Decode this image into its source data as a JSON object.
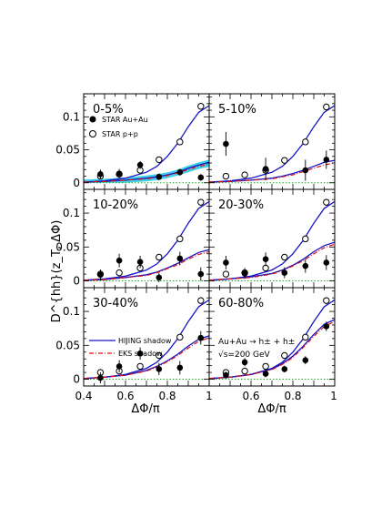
{
  "figure": {
    "ylabel": "D^{hh}(z_T, ΔΦ)",
    "xlabel": "ΔΦ/π",
    "x_ticks": [
      "0.4",
      "0.6",
      "0.8",
      "1"
    ],
    "y_ticks": [
      "0",
      "0.05",
      "0.1"
    ],
    "legend_data": [
      "STAR Au+Au",
      "STAR p+p"
    ],
    "legend_theory": [
      "HIJING shadow",
      "EKS shadow"
    ],
    "reaction": "Au+Au → h± + h±",
    "energy": "√s=200 GeV",
    "colors": {
      "hijing": "#1414c8",
      "eks": "#dd1111",
      "band": "#22c8e6",
      "baseline": "#22aa22"
    }
  },
  "chart_data": [
    {
      "type": "scatter",
      "title": "0-5%",
      "xlim": [
        0.4,
        1.0
      ],
      "ylim": [
        -0.01,
        0.135
      ],
      "series": [
        {
          "name": "STAR Au+Au",
          "x": [
            0.48,
            0.57,
            0.67,
            0.76,
            0.86,
            0.96
          ],
          "y": [
            0.013,
            0.014,
            0.027,
            0.009,
            0.016,
            0.008
          ],
          "err": [
            0.007,
            0.007,
            0.006,
            0.005,
            0.005,
            0.005
          ]
        },
        {
          "name": "STAR p+p",
          "x": [
            0.48,
            0.57,
            0.67,
            0.76,
            0.86,
            0.96
          ],
          "y": [
            0.01,
            0.013,
            0.019,
            0.035,
            0.062,
            0.116
          ],
          "err": [
            0.002,
            0.002,
            0.002,
            0.003,
            0.004,
            0.005
          ]
        },
        {
          "name": "HIJING shadow",
          "x": [
            0.4,
            0.5,
            0.6,
            0.7,
            0.75,
            0.8,
            0.85,
            0.9,
            0.95,
            1.0
          ],
          "y": [
            0.001,
            0.002,
            0.004,
            0.007,
            0.009,
            0.012,
            0.016,
            0.022,
            0.027,
            0.031
          ]
        },
        {
          "name": "EKS shadow",
          "x": [
            0.4,
            0.5,
            0.6,
            0.7,
            0.75,
            0.8,
            0.85,
            0.9,
            0.95,
            1.0
          ],
          "y": [
            0.001,
            0.002,
            0.004,
            0.006,
            0.008,
            0.011,
            0.015,
            0.02,
            0.025,
            0.028
          ]
        },
        {
          "name": "p+p curve",
          "x": [
            0.4,
            0.5,
            0.6,
            0.7,
            0.75,
            0.8,
            0.85,
            0.9,
            0.95,
            1.0
          ],
          "y": [
            0.001,
            0.003,
            0.007,
            0.016,
            0.025,
            0.04,
            0.06,
            0.085,
            0.107,
            0.117
          ]
        }
      ]
    },
    {
      "type": "scatter",
      "title": "5-10%",
      "xlim": [
        0.4,
        1.0
      ],
      "ylim": [
        -0.01,
        0.135
      ],
      "series": [
        {
          "name": "STAR Au+Au",
          "x": [
            0.48,
            0.67,
            0.86,
            0.96
          ],
          "y": [
            0.059,
            0.021,
            0.019,
            0.035
          ],
          "err": [
            0.018,
            0.017,
            0.016,
            0.014
          ]
        },
        {
          "name": "STAR p+p",
          "x": [
            0.48,
            0.57,
            0.67,
            0.76,
            0.86,
            0.96
          ],
          "y": [
            0.01,
            0.012,
            0.019,
            0.034,
            0.062,
            0.115
          ],
          "err": [
            0.002,
            0.002,
            0.002,
            0.003,
            0.004,
            0.005
          ]
        },
        {
          "name": "HIJING shadow",
          "x": [
            0.4,
            0.5,
            0.6,
            0.7,
            0.75,
            0.8,
            0.85,
            0.9,
            0.95,
            1.0
          ],
          "y": [
            0.001,
            0.002,
            0.004,
            0.007,
            0.01,
            0.014,
            0.019,
            0.025,
            0.031,
            0.034
          ]
        },
        {
          "name": "EKS shadow",
          "x": [
            0.4,
            0.5,
            0.6,
            0.7,
            0.75,
            0.8,
            0.85,
            0.9,
            0.95,
            1.0
          ],
          "y": [
            0.001,
            0.002,
            0.004,
            0.006,
            0.009,
            0.012,
            0.017,
            0.022,
            0.027,
            0.03
          ]
        },
        {
          "name": "p+p curve",
          "x": [
            0.4,
            0.5,
            0.6,
            0.7,
            0.75,
            0.8,
            0.85,
            0.9,
            0.95,
            1.0
          ],
          "y": [
            0.001,
            0.003,
            0.007,
            0.016,
            0.025,
            0.04,
            0.06,
            0.085,
            0.107,
            0.117
          ]
        }
      ]
    },
    {
      "type": "scatter",
      "title": "10-20%",
      "xlim": [
        0.4,
        1.0
      ],
      "ylim": [
        -0.01,
        0.135
      ],
      "series": [
        {
          "name": "STAR Au+Au",
          "x": [
            0.48,
            0.57,
            0.67,
            0.76,
            0.86,
            0.96
          ],
          "y": [
            0.009,
            0.03,
            0.028,
            0.005,
            0.033,
            0.01
          ],
          "err": [
            0.008,
            0.01,
            0.009,
            0.007,
            0.01,
            0.01
          ]
        },
        {
          "name": "STAR p+p",
          "x": [
            0.48,
            0.57,
            0.67,
            0.76,
            0.86,
            0.96
          ],
          "y": [
            0.01,
            0.012,
            0.019,
            0.035,
            0.062,
            0.116
          ],
          "err": [
            0.002,
            0.002,
            0.002,
            0.003,
            0.004,
            0.005
          ]
        },
        {
          "name": "HIJING shadow",
          "x": [
            0.4,
            0.5,
            0.6,
            0.7,
            0.75,
            0.8,
            0.85,
            0.9,
            0.95,
            1.0
          ],
          "y": [
            0.001,
            0.002,
            0.005,
            0.009,
            0.013,
            0.019,
            0.026,
            0.034,
            0.042,
            0.046
          ]
        },
        {
          "name": "EKS shadow",
          "x": [
            0.4,
            0.5,
            0.6,
            0.7,
            0.75,
            0.8,
            0.85,
            0.9,
            0.95,
            1.0
          ],
          "y": [
            0.001,
            0.002,
            0.005,
            0.008,
            0.012,
            0.018,
            0.024,
            0.032,
            0.039,
            0.043
          ]
        },
        {
          "name": "p+p curve",
          "x": [
            0.4,
            0.5,
            0.6,
            0.7,
            0.75,
            0.8,
            0.85,
            0.9,
            0.95,
            1.0
          ],
          "y": [
            0.001,
            0.003,
            0.007,
            0.016,
            0.025,
            0.04,
            0.06,
            0.085,
            0.107,
            0.117
          ]
        }
      ]
    },
    {
      "type": "scatter",
      "title": "20-30%",
      "xlim": [
        0.4,
        1.0
      ],
      "ylim": [
        -0.01,
        0.135
      ],
      "series": [
        {
          "name": "STAR Au+Au",
          "x": [
            0.48,
            0.57,
            0.67,
            0.76,
            0.86,
            0.96
          ],
          "y": [
            0.027,
            0.011,
            0.032,
            0.012,
            0.022,
            0.027
          ],
          "err": [
            0.01,
            0.008,
            0.01,
            0.008,
            0.01,
            0.011
          ]
        },
        {
          "name": "STAR p+p",
          "x": [
            0.48,
            0.57,
            0.67,
            0.76,
            0.86,
            0.96
          ],
          "y": [
            0.01,
            0.012,
            0.019,
            0.035,
            0.062,
            0.116
          ],
          "err": [
            0.002,
            0.002,
            0.002,
            0.003,
            0.004,
            0.005
          ]
        },
        {
          "name": "HIJING shadow",
          "x": [
            0.4,
            0.5,
            0.6,
            0.7,
            0.75,
            0.8,
            0.85,
            0.9,
            0.95,
            1.0
          ],
          "y": [
            0.001,
            0.003,
            0.006,
            0.011,
            0.016,
            0.023,
            0.032,
            0.043,
            0.052,
            0.057
          ]
        },
        {
          "name": "EKS shadow",
          "x": [
            0.4,
            0.5,
            0.6,
            0.7,
            0.75,
            0.8,
            0.85,
            0.9,
            0.95,
            1.0
          ],
          "y": [
            0.001,
            0.003,
            0.005,
            0.01,
            0.015,
            0.022,
            0.03,
            0.04,
            0.049,
            0.054
          ]
        },
        {
          "name": "p+p curve",
          "x": [
            0.4,
            0.5,
            0.6,
            0.7,
            0.75,
            0.8,
            0.85,
            0.9,
            0.95,
            1.0
          ],
          "y": [
            0.001,
            0.003,
            0.007,
            0.016,
            0.025,
            0.04,
            0.06,
            0.085,
            0.107,
            0.117
          ]
        }
      ]
    },
    {
      "type": "scatter",
      "title": "30-40%",
      "xlim": [
        0.4,
        1.0
      ],
      "ylim": [
        -0.01,
        0.135
      ],
      "series": [
        {
          "name": "STAR Au+Au",
          "x": [
            0.48,
            0.57,
            0.67,
            0.76,
            0.86,
            0.96
          ],
          "y": [
            0.002,
            0.019,
            0.038,
            0.015,
            0.017,
            0.061
          ],
          "err": [
            0.008,
            0.009,
            0.009,
            0.009,
            0.01,
            0.01
          ]
        },
        {
          "name": "STAR p+p",
          "x": [
            0.48,
            0.57,
            0.67,
            0.76,
            0.86,
            0.96
          ],
          "y": [
            0.01,
            0.012,
            0.019,
            0.035,
            0.062,
            0.116
          ],
          "err": [
            0.002,
            0.002,
            0.002,
            0.003,
            0.004,
            0.005
          ]
        },
        {
          "name": "HIJING shadow",
          "x": [
            0.4,
            0.5,
            0.6,
            0.7,
            0.75,
            0.8,
            0.85,
            0.9,
            0.95,
            1.0
          ],
          "y": [
            0.001,
            0.003,
            0.006,
            0.013,
            0.019,
            0.027,
            0.037,
            0.049,
            0.059,
            0.064
          ]
        },
        {
          "name": "EKS shadow",
          "x": [
            0.4,
            0.5,
            0.6,
            0.7,
            0.75,
            0.8,
            0.85,
            0.9,
            0.95,
            1.0
          ],
          "y": [
            0.001,
            0.003,
            0.006,
            0.012,
            0.018,
            0.026,
            0.035,
            0.046,
            0.056,
            0.061
          ]
        },
        {
          "name": "p+p curve",
          "x": [
            0.4,
            0.5,
            0.6,
            0.7,
            0.75,
            0.8,
            0.85,
            0.9,
            0.95,
            1.0
          ],
          "y": [
            0.001,
            0.003,
            0.007,
            0.016,
            0.025,
            0.04,
            0.06,
            0.085,
            0.107,
            0.117
          ]
        }
      ]
    },
    {
      "type": "scatter",
      "title": "60-80%",
      "xlim": [
        0.4,
        1.0
      ],
      "ylim": [
        -0.01,
        0.135
      ],
      "series": [
        {
          "name": "STAR Au+Au",
          "x": [
            0.48,
            0.57,
            0.67,
            0.76,
            0.86,
            0.96
          ],
          "y": [
            0.006,
            0.025,
            0.008,
            0.015,
            0.028,
            0.078
          ],
          "err": [
            0.005,
            0.006,
            0.005,
            0.005,
            0.006,
            0.007
          ]
        },
        {
          "name": "STAR p+p",
          "x": [
            0.48,
            0.57,
            0.67,
            0.76,
            0.86,
            0.96
          ],
          "y": [
            0.01,
            0.012,
            0.019,
            0.035,
            0.062,
            0.116
          ],
          "err": [
            0.002,
            0.002,
            0.002,
            0.003,
            0.004,
            0.005
          ]
        },
        {
          "name": "HIJING shadow",
          "x": [
            0.4,
            0.5,
            0.6,
            0.7,
            0.75,
            0.8,
            0.85,
            0.9,
            0.95,
            1.0
          ],
          "y": [
            0.001,
            0.003,
            0.007,
            0.015,
            0.023,
            0.034,
            0.049,
            0.066,
            0.081,
            0.088
          ]
        },
        {
          "name": "EKS shadow",
          "x": [
            0.4,
            0.5,
            0.6,
            0.7,
            0.75,
            0.8,
            0.85,
            0.9,
            0.95,
            1.0
          ],
          "y": [
            0.001,
            0.003,
            0.007,
            0.014,
            0.022,
            0.032,
            0.047,
            0.063,
            0.078,
            0.085
          ]
        },
        {
          "name": "p+p curve",
          "x": [
            0.4,
            0.5,
            0.6,
            0.7,
            0.75,
            0.8,
            0.85,
            0.9,
            0.95,
            1.0
          ],
          "y": [
            0.001,
            0.003,
            0.007,
            0.016,
            0.025,
            0.04,
            0.06,
            0.085,
            0.107,
            0.117
          ]
        }
      ]
    }
  ]
}
